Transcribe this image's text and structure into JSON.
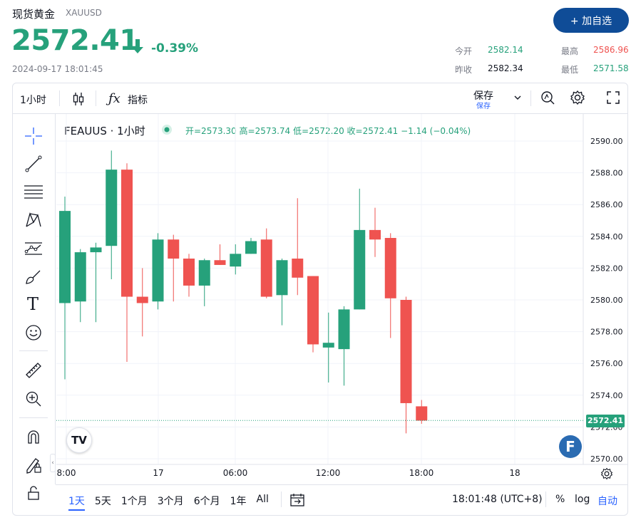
{
  "header": {
    "title": "现货黄金",
    "symbol": "XAUUSD",
    "price": "2572.41",
    "change": "-0.39%",
    "timestamp": "2024-09-17 18:01:45",
    "add_button": "+ 加自选",
    "stats": {
      "open_label": "今开",
      "open_value": "2582.14",
      "high_label": "最高",
      "high_value": "2586.96",
      "prev_label": "昨收",
      "prev_value": "2582.34",
      "low_label": "最低",
      "low_value": "2571.58"
    }
  },
  "toolbar": {
    "interval": "1小时",
    "indicators": "指标",
    "save": "保存",
    "save_sub": "保存"
  },
  "legend": {
    "name": "FEAUUS · 1小时",
    "open": "开=2573.30",
    "high": "高=2573.74",
    "low": "低=2572.20",
    "close": "收=2572.41",
    "change": "−1.14 (−0.04%)"
  },
  "price_tag": "2572.41",
  "bottom": {
    "ranges": [
      "1天",
      "5天",
      "1个月",
      "3个月",
      "6个月",
      "1年",
      "All"
    ],
    "clock": "18:01:48 (UTC+8)",
    "percent": "%",
    "log": "log",
    "auto": "自动"
  },
  "colors": {
    "up": "#26a17b",
    "down": "#ef5350",
    "accent": "#2962ff"
  },
  "icons": [
    "crosshair-icon",
    "trendline-icon",
    "fib-icon",
    "pattern-icon",
    "prediction-icon",
    "brush-icon",
    "text-icon",
    "emoji-icon",
    "ruler-icon",
    "zoom-icon",
    "magnet-icon",
    "lock-pencil-icon",
    "lock-icon"
  ],
  "chart_data": {
    "type": "candlestick",
    "interval": "1小时",
    "ylim": [
      2569.6,
      2590.6
    ],
    "y_ticks": [
      2590,
      2588,
      2586,
      2584,
      2582,
      2580,
      2578,
      2576,
      2574,
      2572,
      2570
    ],
    "x_ticks": [
      "8:00",
      "17",
      "06:00",
      "12:00",
      "18:00",
      "18"
    ],
    "candles": [
      {
        "o": 2579.8,
        "h": 2586.5,
        "l": 2575.0,
        "c": 2585.6
      },
      {
        "o": 2579.9,
        "h": 2583.2,
        "l": 2578.6,
        "c": 2583.0
      },
      {
        "o": 2583.0,
        "h": 2583.6,
        "l": 2578.6,
        "c": 2583.3
      },
      {
        "o": 2583.4,
        "h": 2589.4,
        "l": 2581.3,
        "c": 2588.2
      },
      {
        "o": 2588.2,
        "h": 2588.6,
        "l": 2576.1,
        "c": 2580.2
      },
      {
        "o": 2580.2,
        "h": 2582.0,
        "l": 2577.7,
        "c": 2579.8
      },
      {
        "o": 2579.9,
        "h": 2584.2,
        "l": 2579.4,
        "c": 2583.8
      },
      {
        "o": 2583.8,
        "h": 2584.1,
        "l": 2579.9,
        "c": 2582.6
      },
      {
        "o": 2582.6,
        "h": 2582.9,
        "l": 2580.2,
        "c": 2580.9
      },
      {
        "o": 2580.9,
        "h": 2582.6,
        "l": 2579.6,
        "c": 2582.5
      },
      {
        "o": 2582.5,
        "h": 2583.5,
        "l": 2582.2,
        "c": 2582.2
      },
      {
        "o": 2582.1,
        "h": 2583.5,
        "l": 2581.6,
        "c": 2582.9
      },
      {
        "o": 2582.9,
        "h": 2583.9,
        "l": 2582.9,
        "c": 2583.7
      },
      {
        "o": 2583.8,
        "h": 2584.5,
        "l": 2580.1,
        "c": 2580.2
      },
      {
        "o": 2580.3,
        "h": 2582.6,
        "l": 2578.4,
        "c": 2582.5
      },
      {
        "o": 2582.6,
        "h": 2586.4,
        "l": 2580.3,
        "c": 2581.4
      },
      {
        "o": 2581.5,
        "h": 2581.5,
        "l": 2576.7,
        "c": 2577.2
      },
      {
        "o": 2577.0,
        "h": 2579.2,
        "l": 2574.8,
        "c": 2577.3
      },
      {
        "o": 2576.9,
        "h": 2579.6,
        "l": 2574.6,
        "c": 2579.4
      },
      {
        "o": 2579.4,
        "h": 2587.0,
        "l": 2579.4,
        "c": 2584.4
      },
      {
        "o": 2584.4,
        "h": 2585.8,
        "l": 2582.7,
        "c": 2583.8
      },
      {
        "o": 2583.9,
        "h": 2584.2,
        "l": 2577.6,
        "c": 2580.1
      },
      {
        "o": 2580.0,
        "h": 2580.2,
        "l": 2571.6,
        "c": 2573.5
      },
      {
        "o": 2573.3,
        "h": 2573.7,
        "l": 2572.2,
        "c": 2572.4
      }
    ]
  }
}
